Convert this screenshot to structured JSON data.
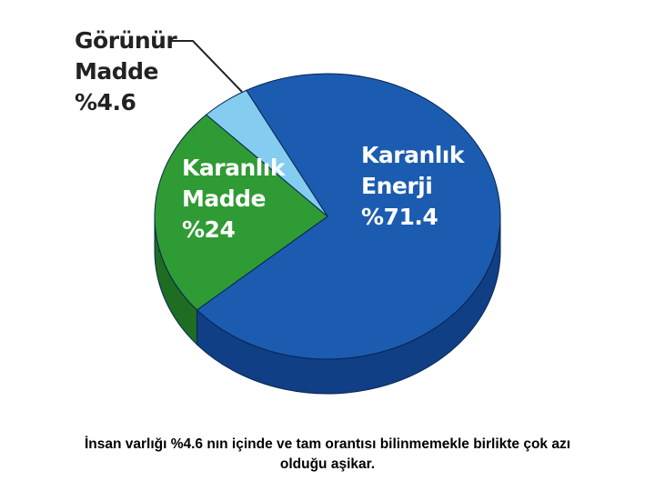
{
  "chart_data": {
    "type": "pie",
    "categories": [
      "Karanlık Enerji",
      "Karanlık Madde",
      "Görünür Madde"
    ],
    "values": [
      71.4,
      24,
      4.6
    ],
    "value_labels": [
      "%71.4",
      "%24",
      "%4.6"
    ],
    "colors": [
      "#1b5cb0",
      "#2f9b34",
      "#84ccf0"
    ],
    "side_colors": [
      "#103f86",
      "#1e6d22",
      "#4f93c0"
    ],
    "caption": "İnsan varlığı %4.6 nın içinde ve tam orantısı bilinmemekle birlikte çok azı olduğu aşikar."
  }
}
